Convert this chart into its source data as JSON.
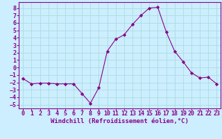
{
  "x": [
    0,
    1,
    2,
    3,
    4,
    5,
    6,
    7,
    8,
    9,
    10,
    11,
    12,
    13,
    14,
    15,
    16,
    17,
    18,
    19,
    20,
    21,
    22,
    23
  ],
  "y": [
    -1.5,
    -2.2,
    -2.1,
    -2.1,
    -2.2,
    -2.2,
    -2.2,
    -3.5,
    -4.8,
    -2.7,
    2.2,
    3.8,
    4.4,
    5.8,
    7.0,
    8.0,
    8.1,
    4.8,
    2.2,
    0.8,
    -0.7,
    -1.4,
    -1.3,
    -2.2
  ],
  "line_color": "#880088",
  "marker": "D",
  "marker_size": 2.2,
  "bg_color": "#cceeff",
  "grid_color": "#aadddd",
  "xlabel": "Windchill (Refroidissement éolien,°C)",
  "xlabel_color": "#880088",
  "tick_color": "#880088",
  "spine_color": "#880088",
  "ylim": [
    -5.5,
    8.8
  ],
  "xlim": [
    -0.5,
    23.5
  ],
  "xticks": [
    0,
    1,
    2,
    3,
    4,
    5,
    6,
    7,
    8,
    9,
    10,
    11,
    12,
    13,
    14,
    15,
    16,
    17,
    18,
    19,
    20,
    21,
    22,
    23
  ],
  "yticks": [
    -5,
    -4,
    -3,
    -2,
    -1,
    0,
    1,
    2,
    3,
    4,
    5,
    6,
    7,
    8
  ],
  "tick_fontsize": 6.0,
  "xlabel_fontsize": 6.5
}
